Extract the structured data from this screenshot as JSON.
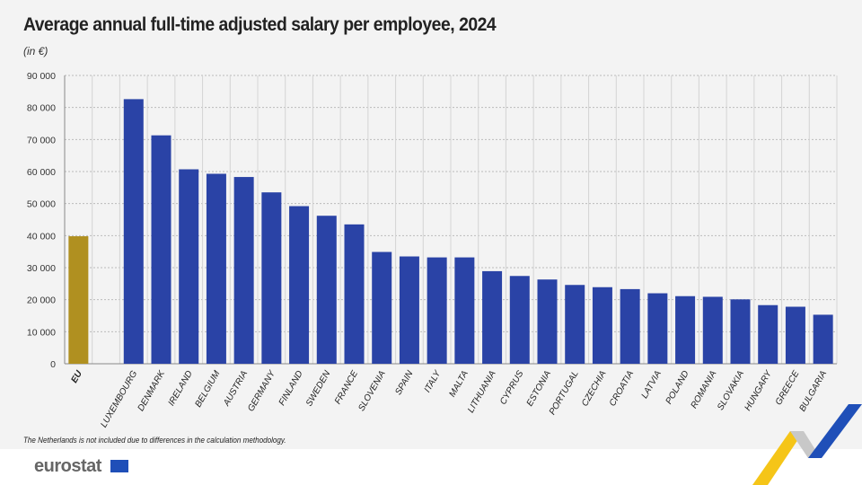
{
  "chart_data": {
    "type": "bar",
    "title": "Average annual full-time adjusted salary per employee, 2024",
    "subtitle": "(in €)",
    "categories": [
      "EU",
      "",
      "LUXEMBOURG",
      "DENMARK",
      "IRELAND",
      "BELGIUM",
      "AUSTRIA",
      "GERMANY",
      "FINLAND",
      "SWEDEN",
      "FRANCE",
      "SLOVENIA",
      "SPAIN",
      "ITALY",
      "MALTA",
      "LITHUANIA",
      "CYPRUS",
      "ESTONIA",
      "PORTUGAL",
      "CZECHIA",
      "CROATIA",
      "LATVIA",
      "POLAND",
      "ROMANIA",
      "SLOVAKIA",
      "HUNGARY",
      "GREECE",
      "BULGARIA"
    ],
    "values": [
      39800,
      null,
      82600,
      71300,
      60700,
      59300,
      58300,
      53500,
      49200,
      46200,
      43500,
      34900,
      33500,
      33200,
      33200,
      28900,
      27400,
      26300,
      24600,
      23900,
      23300,
      22000,
      21100,
      20900,
      20100,
      18300,
      17800,
      15300
    ],
    "ylim": [
      0,
      90000
    ],
    "yticks": [
      0,
      10000,
      20000,
      30000,
      40000,
      50000,
      60000,
      70000,
      80000,
      90000
    ],
    "ytick_labels": [
      "0",
      "10 000",
      "20 000",
      "30 000",
      "40 000",
      "50 000",
      "60 000",
      "70 000",
      "80 000",
      "90 000"
    ],
    "grid": true,
    "colors": {
      "highlight": "#b09020",
      "bars": "#2a43a6"
    },
    "note": "The Netherlands is not included due to differences in the calculation methodology."
  },
  "branding": {
    "logo": "eurostat"
  }
}
